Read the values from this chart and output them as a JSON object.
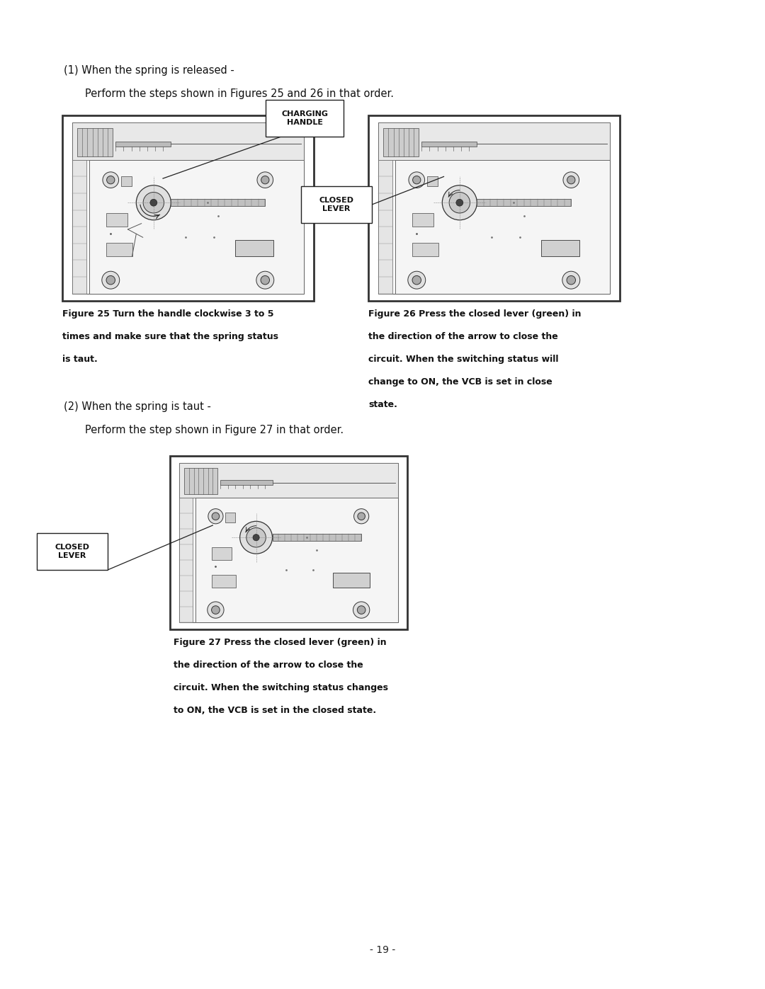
{
  "bg_color": "#ffffff",
  "page_width": 10.8,
  "page_height": 13.97,
  "text1": "(1) When the spring is released -",
  "text2": "Perform the steps shown in Figures 25 and 26 in that order.",
  "text3": "(2) When the spring is taut -",
  "text4": "Perform the step shown in Figure 27 in that order.",
  "fig25_caption_line1": "Figure 25 Turn the handle clockwise 3 to 5",
  "fig25_caption_line2": "times and make sure that the spring status",
  "fig25_caption_line3": "is taut.",
  "fig26_caption_line1": "Figure 26 Press the closed lever (green) in",
  "fig26_caption_line2": "the direction of the arrow to close the",
  "fig26_caption_line3": "circuit. When the switching status will",
  "fig26_caption_line4": "change to ON, the VCB is set in close",
  "fig26_caption_line5": "state.",
  "fig27_caption_line1": "Figure 27 Press the closed lever (green) in",
  "fig27_caption_line2": "the direction of the arrow to close the",
  "fig27_caption_line3": "circuit. When the switching status changes",
  "fig27_caption_line4": "to ON, the VCB is set in the closed state.",
  "page_number": "- 19 -",
  "callout_charging_handle": "CHARGING\nHANDLE",
  "callout_closed_lever1": "CLOSED\nLEVER",
  "callout_closed_lever2": "CLOSED\nLEVER"
}
